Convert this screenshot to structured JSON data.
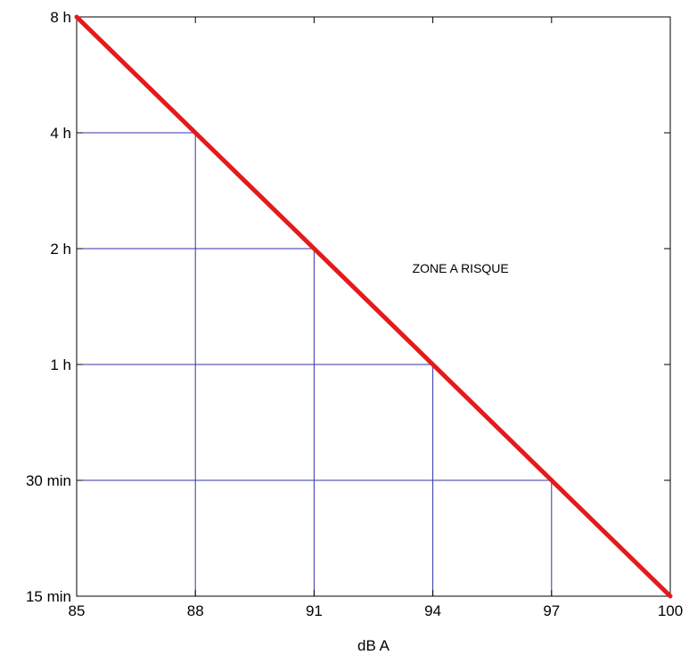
{
  "chart_data": {
    "type": "line",
    "xlabel": "dB A",
    "ylabel": "",
    "x_ticks": [
      85,
      88,
      91,
      94,
      97,
      100
    ],
    "x_tick_labels": [
      "85",
      "88",
      "91",
      "94",
      "97",
      "100"
    ],
    "y_scale": "log2",
    "y_ticks_minutes": [
      15,
      30,
      60,
      120,
      240,
      480
    ],
    "y_tick_labels": [
      "15 min",
      "30 min",
      "1 h",
      "2 h",
      "4 h",
      "8 h"
    ],
    "xlim": [
      85,
      100
    ],
    "ylim_minutes": [
      15,
      480
    ],
    "series": [
      {
        "x": [
          85,
          88,
          91,
          94,
          97,
          100
        ],
        "y_minutes": [
          480,
          240,
          120,
          60,
          30,
          15
        ],
        "color": "#e41a1c"
      }
    ],
    "drop_lines": [
      {
        "x": 88,
        "y_minutes": 240
      },
      {
        "x": 91,
        "y_minutes": 120
      },
      {
        "x": 94,
        "y_minutes": 60
      },
      {
        "x": 97,
        "y_minutes": 30
      }
    ],
    "grid_line_color": "#3333aa",
    "annotation": {
      "text": "ZONE A RISQUE",
      "x": 94.7,
      "y_minutes": 104
    },
    "grid": false
  }
}
